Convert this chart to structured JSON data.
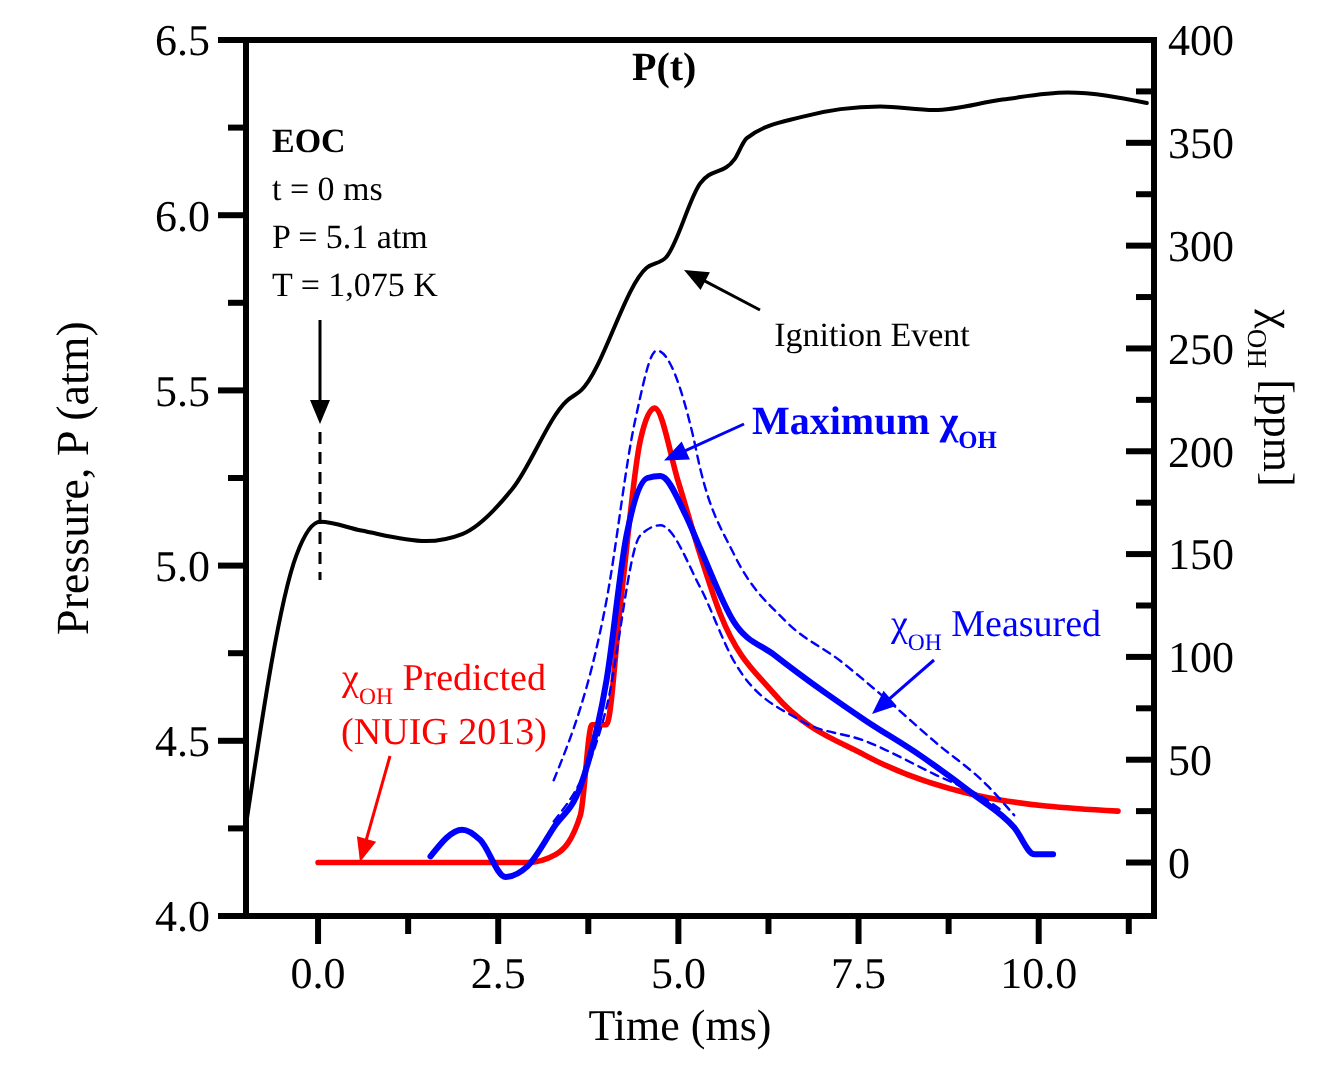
{
  "chart_data": {
    "type": "line",
    "xlabel": "Time (ms)",
    "ylabel": "Pressure, P (atm)",
    "y2label": "χ$_{OH}$ [ppm]",
    "xlim": [
      -1,
      11.6
    ],
    "ylim": [
      4,
      6.5
    ],
    "y2lim": [
      -26,
      400
    ],
    "xticks": [
      {
        "value": 0,
        "label": "0.0"
      },
      {
        "value": 1.25,
        "label": null
      },
      {
        "value": 2.5,
        "label": "2.5"
      },
      {
        "value": 3.75,
        "label": null
      },
      {
        "value": 5,
        "label": "5.0"
      },
      {
        "value": 6.25,
        "label": null
      },
      {
        "value": 7.5,
        "label": "7.5"
      },
      {
        "value": 8.75,
        "label": null
      },
      {
        "value": 10,
        "label": "10.0"
      },
      {
        "value": 11.25,
        "label": null
      }
    ],
    "yticks": [
      {
        "value": 4,
        "label": "4.0"
      },
      {
        "value": 4.25,
        "label": null
      },
      {
        "value": 4.5,
        "label": "4.5"
      },
      {
        "value": 4.75,
        "label": null
      },
      {
        "value": 5,
        "label": "5.0"
      },
      {
        "value": 5.25,
        "label": null
      },
      {
        "value": 5.5,
        "label": "5.5"
      },
      {
        "value": 5.75,
        "label": null
      },
      {
        "value": 6,
        "label": "6.0"
      },
      {
        "value": 6.25,
        "label": null
      },
      {
        "value": 6.5,
        "label": "6.5"
      }
    ],
    "y2ticks": [
      0,
      {
        "value": 25,
        "label": null
      },
      50,
      {
        "value": 75,
        "label": null
      },
      100,
      {
        "value": 125,
        "label": null
      },
      150,
      {
        "value": 175,
        "label": null
      },
      200,
      {
        "value": 225,
        "label": null
      },
      250,
      {
        "value": 275,
        "label": null
      },
      300,
      {
        "value": 325,
        "label": null
      },
      350,
      {
        "value": 375,
        "label": null
      },
      400
    ],
    "grid": false,
    "series": [
      {
        "name": "P(t)",
        "color": "#000000",
        "axis": "y",
        "line_style": "solid",
        "x": [
          -1,
          -0.3,
          0.03,
          0.6,
          1.5,
          2,
          2.7,
          3.45,
          3.65,
          4.56,
          4.83,
          5.3,
          5.78,
          5.95,
          6.7,
          7.8,
          8.55,
          9.5,
          10.4,
          11.5
        ],
        "values": [
          4.26,
          5.03,
          5.125,
          5.1,
          5.07,
          5.09,
          5.22,
          5.47,
          5.5,
          5.85,
          5.88,
          6.09,
          6.16,
          6.22,
          6.28,
          6.31,
          6.3,
          6.33,
          6.35,
          6.32
        ]
      },
      {
        "name": "χ$_{OH}$ Predicted (NUIG 2013)",
        "color": "#ff0000",
        "axis": "y2",
        "line_style": "solid",
        "x": [
          0,
          2.9,
          3.3,
          3.64,
          3.8,
          4,
          4.2,
          4.47,
          4.67,
          5,
          5.3,
          5.58,
          6.33,
          7.6,
          9.1,
          11.1
        ],
        "values": [
          0,
          0,
          4,
          23,
          67,
          67,
          127,
          205,
          221,
          185,
          150,
          121,
          82,
          52,
          33,
          25
        ]
      },
      {
        "name": "χ$_{OH}$ Measured",
        "color": "#0000ff",
        "axis": "y2",
        "line_style": "solid",
        "x": [
          1.56,
          2,
          2.25,
          2.6,
          2.9,
          3.27,
          3.64,
          4,
          4.28,
          4.57,
          4.75,
          5.1,
          5.3,
          5.77,
          6.33,
          7.06,
          7.6,
          8.36,
          9.1,
          9.66,
          9.94,
          10.2
        ],
        "values": [
          3,
          16,
          11,
          -7,
          -2,
          17,
          37,
          88,
          159,
          187,
          188,
          169,
          153,
          117,
          101,
          82,
          69,
          52,
          33,
          17,
          4,
          4
        ]
      },
      {
        "color": "#0000ff",
        "axis": "y2",
        "line_style": "dashed",
        "x": [
          3.27,
          4,
          4.4,
          4.7,
          5.2,
          5.3,
          5.77,
          6.5,
          7.25,
          7.9,
          8.55,
          9.3,
          9.66
        ],
        "values": [
          40,
          127,
          215,
          249,
          208,
          192,
          150,
          117,
          98,
          79,
          59,
          37,
          23
        ]
      },
      {
        "color": "#0000ff",
        "axis": "y2",
        "line_style": "dashed",
        "x": [
          3.27,
          4,
          4.47,
          4.75,
          5.3,
          5.77,
          6.7,
          7.6,
          8.55,
          9.3,
          9.5
        ],
        "values": [
          20,
          75,
          159,
          164,
          134,
          98,
          69,
          59,
          43,
          30,
          25
        ]
      }
    ],
    "annotations": [
      "EOC",
      "t = 0 ms",
      "P = 5.1 atm",
      "T = 1,075 K",
      "Ignition Event",
      {
        "text": "Maximum χ$_{OH}$",
        "x": 4.8,
        "y": 5.3
      }
    ]
  }
}
